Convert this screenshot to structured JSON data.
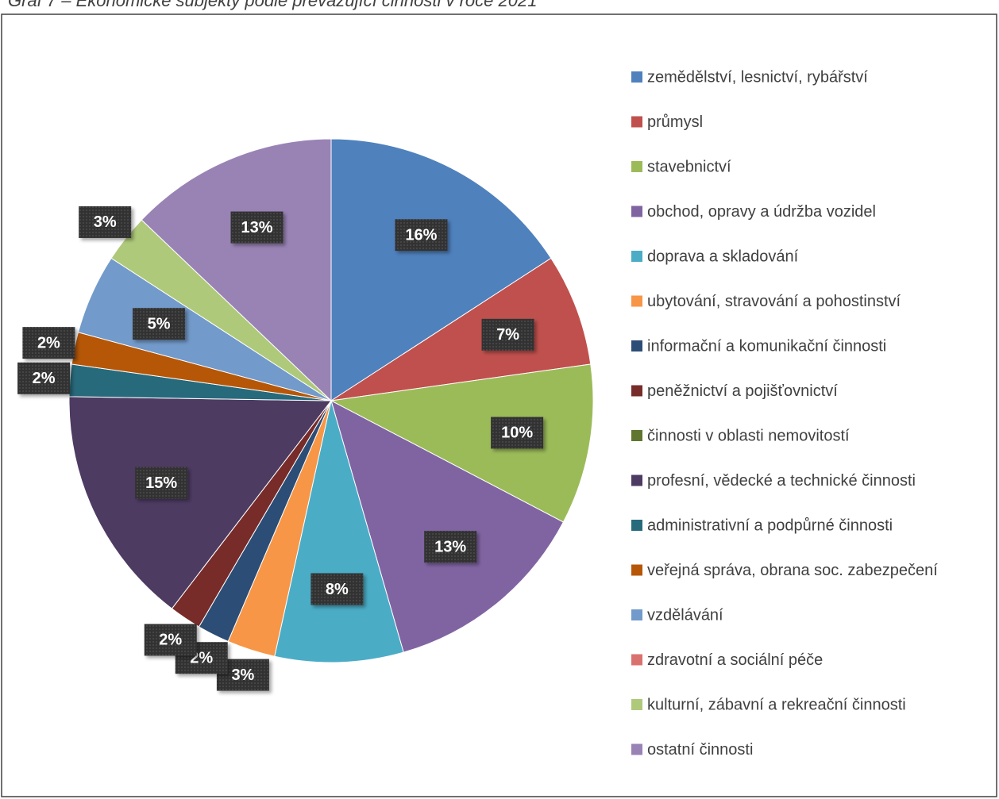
{
  "chart_data": {
    "type": "pie",
    "title": "Graf 7 – Ekonomické subjekty podle převažující činnosti v roce 2021",
    "categories": [
      "zemědělství, lesnictví, rybářství",
      "průmysl",
      "stavebnictví",
      "obchod, opravy a údržba vozidel",
      "doprava a skladování",
      "ubytování, stravování a pohostinství",
      "informační a komunikační činnosti",
      "peněžnictví a pojišťovnictví",
      "činnosti v oblasti nemovitostí",
      "profesní, vědecké a technické činnosti",
      "administrativní a podpůrné činnosti",
      "veřejná správa, obrana soc. zabezpečení",
      "vzdělávání",
      "zdravotní a sociální péče",
      "kulturní, zábavní a rekreační činnosti",
      "ostatní činnosti"
    ],
    "values": [
      16,
      7,
      10,
      13,
      8,
      3,
      2,
      2,
      0,
      15,
      2,
      2,
      5,
      0,
      3,
      13
    ],
    "value_labels": [
      "16%",
      "7%",
      "10%",
      "13%",
      "8%",
      "3%",
      "2%",
      "2%",
      null,
      "15%",
      "2%",
      "2%",
      "5%",
      null,
      "3%",
      "13%"
    ],
    "colors": [
      "#4f81bd",
      "#c0504d",
      "#9bbb59",
      "#8064a2",
      "#4bacc6",
      "#f79646",
      "#2c4d75",
      "#772c2a",
      "#5f7530",
      "#4d3b62",
      "#276a7c",
      "#b65708",
      "#729aca",
      "#d9726f",
      "#afc97a",
      "#9983b5"
    ],
    "legend": "right"
  }
}
